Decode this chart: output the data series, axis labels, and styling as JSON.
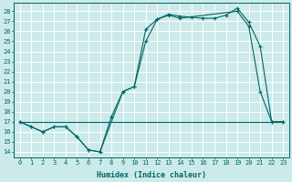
{
  "xlabel": "Humidex (Indice chaleur)",
  "ylabel_ticks": [
    14,
    15,
    16,
    17,
    18,
    19,
    20,
    21,
    22,
    23,
    24,
    25,
    26,
    27,
    28
  ],
  "xlim": [
    -0.5,
    23.5
  ],
  "ylim": [
    13.5,
    28.8
  ],
  "bg_color": "#cceaea",
  "grid_color": "#ffffff",
  "line_color": "#006666",
  "flat_x": [
    0,
    1,
    2,
    3,
    4,
    5,
    6,
    7,
    8,
    9,
    10,
    11,
    12,
    13,
    14,
    15,
    16,
    17,
    18,
    19,
    20,
    21,
    22,
    23
  ],
  "flat_y": [
    17,
    17,
    17,
    17,
    17,
    17,
    17,
    17,
    17,
    17,
    17,
    17,
    17,
    17,
    17,
    17,
    17,
    17,
    17,
    17,
    17,
    17,
    17,
    17
  ],
  "line1_x": [
    0,
    1,
    2,
    3,
    4,
    5,
    6,
    7,
    8,
    9,
    10,
    11,
    12,
    13,
    14,
    19,
    20,
    21,
    22,
    23
  ],
  "line1_y": [
    17,
    16.5,
    16,
    16.5,
    16.5,
    15.5,
    14.2,
    14,
    17.5,
    20,
    20.5,
    25,
    27.2,
    27.6,
    27.3,
    28,
    26.5,
    20,
    17,
    17
  ],
  "line2_x": [
    0,
    1,
    2,
    3,
    4,
    5,
    6,
    7,
    9,
    10,
    11,
    12,
    13,
    14,
    15,
    16,
    17,
    18,
    19,
    20,
    21,
    22,
    23
  ],
  "line2_y": [
    17,
    16.5,
    16,
    16.5,
    16.5,
    15.5,
    14.2,
    14,
    20,
    20.5,
    26.2,
    27.2,
    27.7,
    27.5,
    27.4,
    27.3,
    27.3,
    27.6,
    28.3,
    26.9,
    24.5,
    17,
    17
  ]
}
